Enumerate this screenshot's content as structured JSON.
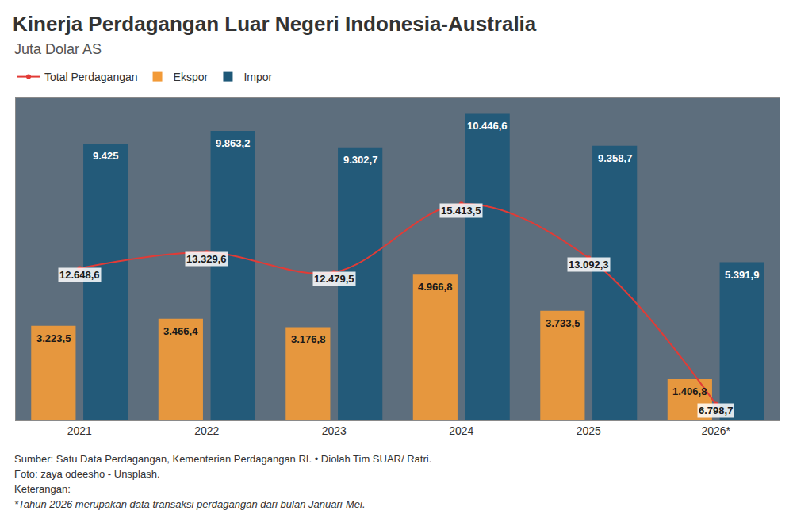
{
  "chart_data": {
    "type": "bar",
    "title": "Kinerja Perdagangan Luar Negeri Indonesia-Australia",
    "subtitle": "Juta Dolar AS",
    "categories": [
      "2021",
      "2022",
      "2023",
      "2024",
      "2025",
      "2026*"
    ],
    "series": [
      {
        "name": "Total Perdagangan",
        "type": "line",
        "axis": "y2",
        "color": "#e23b36",
        "marker": "circle",
        "line_style": "solid",
        "values": [
          12648.6,
          13329.6,
          12479.5,
          15413.5,
          13092.3,
          6798.7
        ],
        "value_labels": [
          "12.648,6",
          "13.329,6",
          "12.479,5",
          "15.413,5",
          "13.092,3",
          "6.798,7"
        ]
      },
      {
        "name": "Ekspor",
        "type": "bar",
        "color": "#f29a38",
        "values": [
          3223.5,
          3466.4,
          3176.8,
          4966.8,
          3733.5,
          1406.8
        ],
        "value_labels": [
          "3.223,5",
          "3.466,4",
          "3.176,8",
          "4.966,8",
          "3.733,5",
          "1.406,8"
        ]
      },
      {
        "name": "Impor",
        "type": "bar",
        "color": "#1e5878",
        "values": [
          9425,
          9863.2,
          9302.7,
          10446.6,
          9358.7,
          5391.9
        ],
        "value_labels": [
          "9.425",
          "9.863,2",
          "9.302,7",
          "10.446,6",
          "9.358,7",
          "5.391,9"
        ]
      }
    ],
    "ylim": [
      0,
      11000
    ],
    "y2lim": [
      6100,
      20000
    ],
    "tick_labels": "x",
    "data_labels": true,
    "grid": false,
    "legend": "top-left",
    "notes": [
      "Sumber: Satu Data Perdagangan, Kementerian Perdagangan RI. • Diolah Tim SUAR/ Ratri.",
      "Foto: zaya odeesho - Unsplash.",
      "Keterangan:",
      "*Tahun 2026 merupakan data transaksi perdagangan dari bulan Januari-Mei."
    ]
  }
}
